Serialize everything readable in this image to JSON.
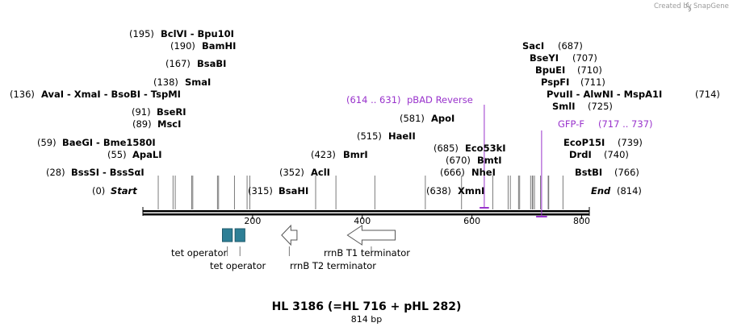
{
  "credit": {
    "prefix": "Created by",
    "brand": "SnapGene"
  },
  "map": {
    "title": "HL 3186 (=HL 716 + pHL 282)",
    "length": 814,
    "length_label": "814 bp",
    "ticks": [
      200,
      400,
      600,
      800
    ]
  },
  "ends": {
    "start": {
      "name": "Start",
      "position": "(0)"
    },
    "end": {
      "name": "End",
      "position": "(814)"
    }
  },
  "sites_left": [
    {
      "pos": "(195)",
      "name": "BclVI  - Bpu10I",
      "loc": 195
    },
    {
      "pos": "(190)",
      "name": "BamHI",
      "loc": 190
    },
    {
      "pos": "(167)",
      "name": "BsaBI",
      "loc": 167
    },
    {
      "pos": "(138)",
      "name": "SmaI",
      "loc": 138
    },
    {
      "pos": "(136)",
      "name": "AvaI  - XmaI  - BsoBI  - TspMI",
      "loc": 136
    },
    {
      "pos": "(91)",
      "name": "BseRI",
      "loc": 91
    },
    {
      "pos": "(89)",
      "name": "MscI",
      "loc": 89
    },
    {
      "pos": "(59)",
      "name": "BaeGI  - Bme1580I",
      "loc": 59
    },
    {
      "pos": "(55)",
      "name": "ApaLI",
      "loc": 55
    },
    {
      "pos": "(28)",
      "name": "BssSI  - BssSαI",
      "loc": 28
    }
  ],
  "sites_mid": [
    {
      "pos": "(315)",
      "name": "BsaHI",
      "loc": 315
    },
    {
      "pos": "(352)",
      "name": "AclI",
      "loc": 352
    },
    {
      "pos": "(423)",
      "name": "BmrI",
      "loc": 423
    },
    {
      "pos": "(515)",
      "name": "HaeII",
      "loc": 515
    },
    {
      "pos": "(581)",
      "name": "ApoI",
      "loc": 581
    },
    {
      "pos": "(685)",
      "name": "Eco53kI",
      "loc": 685
    },
    {
      "pos": "(670)",
      "name": "BmtI",
      "loc": 670
    },
    {
      "pos": "(666)",
      "name": "NheI",
      "loc": 666
    },
    {
      "pos": "(638)",
      "name": "XmnI",
      "loc": 638
    }
  ],
  "sites_right": [
    {
      "name": "SacI",
      "pos": "(687)",
      "loc": 687
    },
    {
      "name": "BseYI",
      "pos": "(707)",
      "loc": 707
    },
    {
      "name": "BpuEI",
      "pos": "(710)",
      "loc": 710
    },
    {
      "name": "PspFI",
      "pos": "(711)",
      "loc": 711
    },
    {
      "name": "PvuII  - AlwNI  - MspA1I",
      "pos": "(714)",
      "loc": 714
    },
    {
      "name": "SmlI",
      "pos": "(725)",
      "loc": 725
    },
    {
      "name": "EcoP15I",
      "pos": "(739)",
      "loc": 739
    },
    {
      "name": "DrdI",
      "pos": "(740)",
      "loc": 740
    },
    {
      "name": "BstBI",
      "pos": "(766)",
      "loc": 766
    }
  ],
  "primers": [
    {
      "range": "(614 .. 631)",
      "name": "pBAD Reverse",
      "start": 614,
      "end": 631,
      "color": "#9933cc"
    },
    {
      "name": "GFP-F",
      "range": "(717 .. 737)",
      "start": 717,
      "end": 737,
      "color": "#9933cc"
    }
  ],
  "features": [
    {
      "name": "tet operator",
      "start": 145,
      "end": 163,
      "kind": "box",
      "color": "#2e7f96"
    },
    {
      "name": "tet operator",
      "start": 168,
      "end": 186,
      "kind": "box",
      "color": "#2e7f96"
    },
    {
      "name": "rrnB T2 terminator",
      "start": 253,
      "end": 281,
      "kind": "arrow-left",
      "color": "#ffffff"
    },
    {
      "name": "rrnB T1 terminator",
      "start": 373,
      "end": 460,
      "kind": "arrow-left",
      "color": "#ffffff"
    }
  ]
}
